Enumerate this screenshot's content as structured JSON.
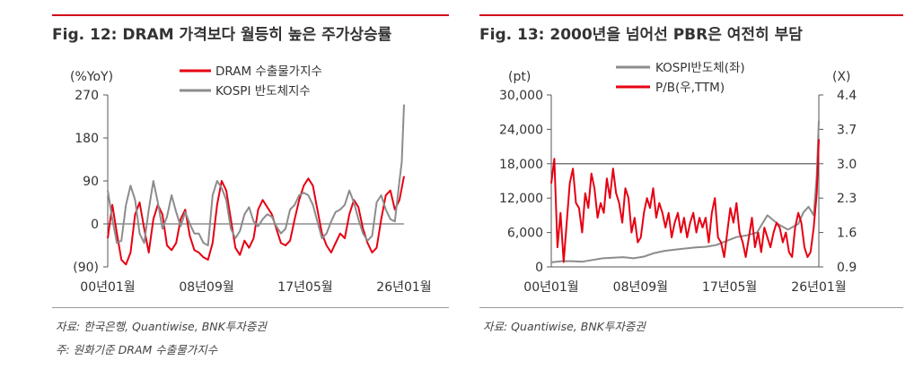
{
  "colors": {
    "red": "#e60012",
    "gray": "#8c8c8c",
    "accent": "#d0021b"
  },
  "chart_data": [
    {
      "type": "line",
      "title": "Fig. 12: DRAM 가격보다 월등히 높은 주가상승률",
      "ylabel": "(%YoY)",
      "ylim": [
        -90,
        270
      ],
      "yticks": [
        "270",
        "180",
        "90",
        "0",
        "(90)"
      ],
      "ytick_values": [
        270,
        180,
        90,
        0,
        -90
      ],
      "xticks": [
        "00년01월",
        "08년09월",
        "17년05월",
        "26년01월"
      ],
      "xtick_values": [
        2000.0,
        2008.67,
        2017.33,
        2026.0
      ],
      "xlim": [
        2000.0,
        2026.0
      ],
      "legend": "top-center",
      "series": [
        {
          "name": "DRAM 수출물가지수",
          "color": "#e60012",
          "x": [
            2000.0,
            2000.4,
            2000.8,
            2001.2,
            2001.6,
            2002.0,
            2002.4,
            2002.8,
            2003.2,
            2003.6,
            2004.0,
            2004.4,
            2004.8,
            2005.2,
            2005.6,
            2006.0,
            2006.4,
            2006.8,
            2007.2,
            2007.6,
            2008.0,
            2008.4,
            2008.8,
            2009.2,
            2009.6,
            2010.0,
            2010.4,
            2010.8,
            2011.2,
            2011.6,
            2012.0,
            2012.4,
            2012.8,
            2013.2,
            2013.6,
            2014.0,
            2014.4,
            2014.8,
            2015.2,
            2015.6,
            2016.0,
            2016.4,
            2016.8,
            2017.2,
            2017.6,
            2018.0,
            2018.4,
            2018.8,
            2019.2,
            2019.6,
            2020.0,
            2020.4,
            2020.8,
            2021.2,
            2021.6,
            2022.0,
            2022.4,
            2022.8,
            2023.2,
            2023.6,
            2024.0,
            2024.4,
            2024.8,
            2025.2,
            2025.6,
            2026.0
          ],
          "values": [
            -30,
            40,
            -20,
            -75,
            -85,
            -60,
            20,
            45,
            -10,
            -60,
            10,
            40,
            20,
            -45,
            -55,
            -40,
            10,
            30,
            -25,
            -55,
            -60,
            -70,
            -75,
            -40,
            40,
            90,
            70,
            10,
            -50,
            -65,
            -35,
            -50,
            -30,
            30,
            50,
            35,
            20,
            -10,
            -40,
            -45,
            -35,
            10,
            50,
            80,
            95,
            80,
            30,
            -20,
            -45,
            -60,
            -40,
            -20,
            -30,
            20,
            50,
            35,
            -10,
            -40,
            -60,
            -50,
            10,
            60,
            70,
            30,
            50,
            100
          ]
        },
        {
          "name": "KOSPI 반도체지수",
          "color": "#8c8c8c",
          "x": [
            2000.0,
            2000.4,
            2000.8,
            2001.2,
            2001.6,
            2002.0,
            2002.4,
            2002.8,
            2003.2,
            2003.6,
            2004.0,
            2004.4,
            2004.8,
            2005.2,
            2005.6,
            2006.0,
            2006.4,
            2006.8,
            2007.2,
            2007.6,
            2008.0,
            2008.4,
            2008.8,
            2009.2,
            2009.6,
            2010.0,
            2010.4,
            2010.8,
            2011.2,
            2011.6,
            2012.0,
            2012.4,
            2012.8,
            2013.2,
            2013.6,
            2014.0,
            2014.4,
            2014.8,
            2015.2,
            2015.6,
            2016.0,
            2016.4,
            2016.8,
            2017.2,
            2017.6,
            2018.0,
            2018.4,
            2018.8,
            2019.2,
            2019.6,
            2020.0,
            2020.4,
            2020.8,
            2021.2,
            2021.6,
            2022.0,
            2022.4,
            2022.8,
            2023.2,
            2023.6,
            2024.0,
            2024.4,
            2024.8,
            2025.2,
            2025.6,
            2025.8,
            2026.0
          ],
          "values": [
            70,
            10,
            -40,
            -35,
            40,
            80,
            50,
            -20,
            -40,
            30,
            90,
            45,
            -10,
            15,
            60,
            25,
            -5,
            25,
            0,
            -20,
            -20,
            -40,
            -45,
            60,
            90,
            75,
            50,
            -10,
            -30,
            -15,
            20,
            35,
            5,
            -5,
            10,
            20,
            15,
            -5,
            -20,
            -10,
            30,
            40,
            60,
            65,
            60,
            40,
            5,
            -30,
            -20,
            5,
            25,
            30,
            40,
            70,
            45,
            10,
            -20,
            -35,
            -25,
            45,
            60,
            30,
            10,
            5,
            90,
            130,
            250
          ]
        }
      ]
    },
    {
      "type": "line",
      "title": "Fig. 13: 2000년을 넘어선 PBR은 여전히 부담",
      "ylabel_left": "(pt)",
      "ylabel_right": "(X)",
      "ylim_left": [
        0,
        30000
      ],
      "ylim_right": [
        0.9,
        4.4
      ],
      "yticks_left": [
        "30,000",
        "24,000",
        "18,000",
        "12,000",
        "6,000",
        "0"
      ],
      "ytick_values_left": [
        30000,
        24000,
        18000,
        12000,
        6000,
        0
      ],
      "yticks_right": [
        "4.4",
        "3.7",
        "3.0",
        "2.3",
        "1.6",
        "0.9"
      ],
      "ytick_values_right": [
        4.4,
        3.7,
        3.0,
        2.3,
        1.6,
        0.9
      ],
      "xticks": [
        "00년01월",
        "08년09월",
        "17년05월",
        "26년01월"
      ],
      "xtick_values": [
        2000.0,
        2008.67,
        2017.33,
        2026.0
      ],
      "xlim": [
        2000.0,
        2026.0
      ],
      "reference_line_right": 3.0,
      "legend": "top-center",
      "series": [
        {
          "name": "KOSPI반도체(좌)",
          "axis": "left",
          "color": "#8c8c8c",
          "x": [
            2000.0,
            2001.0,
            2002.0,
            2003.0,
            2004.0,
            2005.0,
            2006.0,
            2007.0,
            2008.0,
            2009.0,
            2010.0,
            2011.0,
            2012.0,
            2013.0,
            2014.0,
            2015.0,
            2016.0,
            2017.0,
            2018.0,
            2019.0,
            2020.0,
            2021.0,
            2022.0,
            2023.0,
            2024.0,
            2024.5,
            2025.0,
            2025.5,
            2025.8,
            2026.0
          ],
          "values": [
            800,
            1000,
            1000,
            900,
            1200,
            1500,
            1600,
            1700,
            1500,
            1800,
            2400,
            2800,
            3000,
            3200,
            3400,
            3500,
            3800,
            4500,
            5200,
            5500,
            6000,
            9000,
            7500,
            6500,
            7500,
            9500,
            10500,
            9000,
            16000,
            25500
          ]
        },
        {
          "name": "P/B(우,TTM)",
          "axis": "right",
          "color": "#e60012",
          "x": [
            2000.0,
            2000.3,
            2000.6,
            2000.9,
            2001.2,
            2001.5,
            2001.8,
            2002.1,
            2002.4,
            2002.7,
            2003.0,
            2003.3,
            2003.6,
            2003.9,
            2004.2,
            2004.5,
            2004.8,
            2005.1,
            2005.4,
            2005.7,
            2006.0,
            2006.3,
            2006.6,
            2006.9,
            2007.2,
            2007.5,
            2007.8,
            2008.1,
            2008.4,
            2008.7,
            2009.0,
            2009.3,
            2009.6,
            2009.9,
            2010.2,
            2010.5,
            2010.8,
            2011.1,
            2011.4,
            2011.7,
            2012.0,
            2012.3,
            2012.6,
            2012.9,
            2013.2,
            2013.5,
            2013.8,
            2014.1,
            2014.4,
            2014.7,
            2015.0,
            2015.3,
            2015.6,
            2015.9,
            2016.2,
            2016.5,
            2016.8,
            2017.1,
            2017.4,
            2017.7,
            2018.0,
            2018.3,
            2018.6,
            2018.9,
            2019.2,
            2019.5,
            2019.8,
            2020.1,
            2020.4,
            2020.7,
            2021.0,
            2021.3,
            2021.6,
            2021.9,
            2022.2,
            2022.5,
            2022.8,
            2023.1,
            2023.4,
            2023.7,
            2024.0,
            2024.3,
            2024.6,
            2024.9,
            2025.2,
            2025.5,
            2025.8,
            2026.0
          ],
          "values": [
            2.6,
            3.1,
            1.3,
            2.0,
            1.0,
            1.8,
            2.6,
            2.9,
            2.2,
            2.1,
            1.6,
            2.4,
            2.1,
            2.8,
            2.5,
            1.9,
            2.2,
            2.0,
            2.7,
            2.3,
            2.9,
            2.4,
            2.2,
            1.8,
            2.5,
            2.3,
            1.6,
            1.9,
            1.4,
            1.5,
            2.0,
            2.3,
            2.1,
            2.5,
            1.9,
            2.2,
            2.0,
            1.7,
            2.0,
            1.5,
            1.8,
            2.0,
            1.6,
            1.9,
            1.5,
            1.8,
            2.0,
            1.6,
            1.9,
            1.7,
            1.9,
            1.4,
            2.0,
            2.3,
            1.5,
            1.4,
            1.1,
            1.6,
            2.1,
            1.8,
            2.2,
            1.6,
            1.4,
            1.1,
            1.5,
            1.9,
            1.3,
            1.6,
            1.2,
            1.7,
            1.5,
            1.3,
            1.6,
            1.8,
            1.7,
            1.4,
            1.6,
            1.2,
            1.1,
            1.7,
            2.0,
            1.8,
            1.3,
            1.1,
            1.2,
            1.7,
            2.4,
            3.5
          ]
        }
      ]
    }
  ],
  "notes": {
    "left_source": "자료: 한국은행, Quantiwise, BNK투자증권",
    "left_footnote": "주: 원화기준 DRAM 수출물가지수",
    "right_source": "자료: Quantiwise, BNK투자증권"
  }
}
